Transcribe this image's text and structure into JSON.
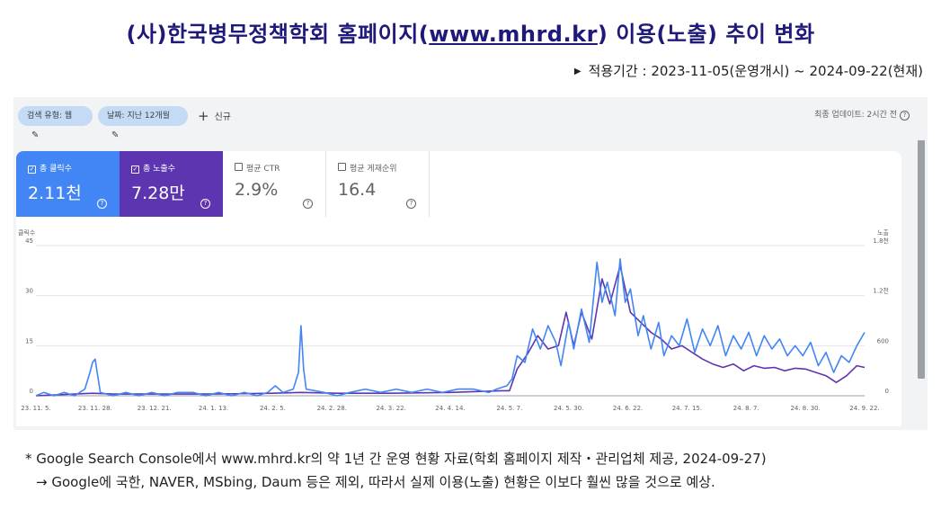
{
  "header": {
    "title_prefix": "(사)한국병무정책학회 홈페이지(",
    "title_url": "www.mhrd.kr",
    "title_suffix": ") 이용(노출) 추이 변화",
    "period": "적용기간 : 2023-11-05(운영개시) ~ 2024-09-22(현재)"
  },
  "toolbar": {
    "filter_type": "검색 유형: 웹",
    "filter_date": "날짜: 지난 12개월",
    "new_label": "신규",
    "updated": "최종 업데이트: 2시간 전"
  },
  "metrics": [
    {
      "label": "총 클릭수",
      "value": "2.11천",
      "checked": true,
      "color": "#4285f4"
    },
    {
      "label": "총 노출수",
      "value": "7.28만",
      "checked": true,
      "color": "#5e35b1"
    },
    {
      "label": "평균 CTR",
      "value": "2.9%",
      "checked": false
    },
    {
      "label": "평균 게재순위",
      "value": "16.4",
      "checked": false
    }
  ],
  "notes": {
    "line1": "* Google Search Console에서 www.mhrd.kr의 약 1년 간 운영 현황 자료(학회 홈페이지 제작・관리업체 제공, 2024-09-27)",
    "line2": "→ Google에 국한, NAVER, MSbing, Daum 등은 제외, 따라서 실제 이용(노출) 현황은 이보다 훨씬 많을 것으로 예상."
  },
  "chart_data": {
    "type": "line",
    "ylabel_left": "클릭수",
    "ylabel_right": "노출",
    "yticks_left": [
      "0",
      "15",
      "30",
      "45"
    ],
    "yticks_right": [
      "0",
      "600",
      "1.2천",
      "1.8천"
    ],
    "ylim_left": [
      0,
      45
    ],
    "ylim_right": [
      0,
      1800
    ],
    "x_range": [
      "2023-11-05",
      "2024-09-22"
    ],
    "x_ticks": [
      {
        "date": "2023-11-05",
        "label": "23. 11. 5."
      },
      {
        "date": "2023-11-28",
        "label": "23. 11. 28."
      },
      {
        "date": "2023-12-21",
        "label": "23. 12. 21."
      },
      {
        "date": "2024-01-13",
        "label": "24. 1. 13."
      },
      {
        "date": "2024-02-05",
        "label": "24. 2. 5."
      },
      {
        "date": "2024-02-28",
        "label": "24. 2. 28."
      },
      {
        "date": "2024-03-22",
        "label": "24. 3. 22."
      },
      {
        "date": "2024-04-14",
        "label": "24. 4. 14."
      },
      {
        "date": "2024-05-07",
        "label": "24. 5. 7."
      },
      {
        "date": "2024-05-30",
        "label": "24. 5. 30."
      },
      {
        "date": "2024-06-22",
        "label": "24. 6. 22."
      },
      {
        "date": "2024-07-15",
        "label": "24. 7. 15."
      },
      {
        "date": "2024-08-07",
        "label": "24. 8. 7."
      },
      {
        "date": "2024-08-30",
        "label": "24. 8. 30."
      },
      {
        "date": "2024-09-22",
        "label": "24. 9. 22."
      }
    ],
    "grid": true,
    "series": [
      {
        "name": "총 클릭수",
        "axis": "left",
        "color": "#4285f4",
        "points": [
          [
            "2023-11-05",
            0
          ],
          [
            "2023-11-08",
            1
          ],
          [
            "2023-11-12",
            0
          ],
          [
            "2023-11-16",
            1
          ],
          [
            "2023-11-20",
            0
          ],
          [
            "2023-11-24",
            2
          ],
          [
            "2023-11-26",
            7
          ],
          [
            "2023-11-27",
            10
          ],
          [
            "2023-11-28",
            11
          ],
          [
            "2023-11-29",
            6
          ],
          [
            "2023-11-30",
            1
          ],
          [
            "2023-12-05",
            0
          ],
          [
            "2023-12-10",
            1
          ],
          [
            "2023-12-15",
            0
          ],
          [
            "2023-12-20",
            1
          ],
          [
            "2023-12-25",
            0
          ],
          [
            "2023-12-30",
            1
          ],
          [
            "2024-01-05",
            1
          ],
          [
            "2024-01-10",
            0
          ],
          [
            "2024-01-15",
            1
          ],
          [
            "2024-01-20",
            0
          ],
          [
            "2024-01-25",
            1
          ],
          [
            "2024-01-30",
            0
          ],
          [
            "2024-02-03",
            1
          ],
          [
            "2024-02-06",
            3
          ],
          [
            "2024-02-09",
            1
          ],
          [
            "2024-02-13",
            2
          ],
          [
            "2024-02-15",
            7
          ],
          [
            "2024-02-16",
            21
          ],
          [
            "2024-02-17",
            8
          ],
          [
            "2024-02-18",
            2
          ],
          [
            "2024-02-25",
            1
          ],
          [
            "2024-03-01",
            0
          ],
          [
            "2024-03-06",
            1
          ],
          [
            "2024-03-12",
            2
          ],
          [
            "2024-03-18",
            1
          ],
          [
            "2024-03-24",
            2
          ],
          [
            "2024-03-30",
            1
          ],
          [
            "2024-04-05",
            2
          ],
          [
            "2024-04-11",
            1
          ],
          [
            "2024-04-17",
            2
          ],
          [
            "2024-04-23",
            2
          ],
          [
            "2024-04-29",
            1
          ],
          [
            "2024-05-02",
            2
          ],
          [
            "2024-05-06",
            3
          ],
          [
            "2024-05-08",
            5
          ],
          [
            "2024-05-10",
            12
          ],
          [
            "2024-05-13",
            10
          ],
          [
            "2024-05-16",
            20
          ],
          [
            "2024-05-19",
            14
          ],
          [
            "2024-05-22",
            21
          ],
          [
            "2024-05-25",
            16
          ],
          [
            "2024-05-27",
            9
          ],
          [
            "2024-05-30",
            22
          ],
          [
            "2024-06-01",
            14
          ],
          [
            "2024-06-04",
            26
          ],
          [
            "2024-06-07",
            16
          ],
          [
            "2024-06-10",
            40
          ],
          [
            "2024-06-12",
            28
          ],
          [
            "2024-06-14",
            34
          ],
          [
            "2024-06-17",
            24
          ],
          [
            "2024-06-19",
            41
          ],
          [
            "2024-06-21",
            28
          ],
          [
            "2024-06-23",
            32
          ],
          [
            "2024-06-26",
            18
          ],
          [
            "2024-06-28",
            24
          ],
          [
            "2024-07-01",
            14
          ],
          [
            "2024-07-04",
            22
          ],
          [
            "2024-07-06",
            12
          ],
          [
            "2024-07-09",
            18
          ],
          [
            "2024-07-12",
            15
          ],
          [
            "2024-07-15",
            23
          ],
          [
            "2024-07-18",
            13
          ],
          [
            "2024-07-21",
            20
          ],
          [
            "2024-07-24",
            15
          ],
          [
            "2024-07-27",
            21
          ],
          [
            "2024-07-30",
            12
          ],
          [
            "2024-08-02",
            18
          ],
          [
            "2024-08-05",
            14
          ],
          [
            "2024-08-08",
            19
          ],
          [
            "2024-08-11",
            12
          ],
          [
            "2024-08-14",
            18
          ],
          [
            "2024-08-17",
            14
          ],
          [
            "2024-08-20",
            17
          ],
          [
            "2024-08-23",
            12
          ],
          [
            "2024-08-26",
            15
          ],
          [
            "2024-08-29",
            12
          ],
          [
            "2024-09-01",
            16
          ],
          [
            "2024-09-04",
            9
          ],
          [
            "2024-09-07",
            13
          ],
          [
            "2024-09-10",
            7
          ],
          [
            "2024-09-13",
            12
          ],
          [
            "2024-09-16",
            10
          ],
          [
            "2024-09-19",
            15
          ],
          [
            "2024-09-22",
            19
          ]
        ]
      },
      {
        "name": "총 노출수",
        "axis": "right",
        "color": "#5e35b1",
        "points": [
          [
            "2023-11-05",
            0
          ],
          [
            "2023-11-20",
            20
          ],
          [
            "2023-11-27",
            30
          ],
          [
            "2023-12-05",
            20
          ],
          [
            "2023-12-25",
            20
          ],
          [
            "2024-01-13",
            20
          ],
          [
            "2024-02-05",
            30
          ],
          [
            "2024-02-16",
            40
          ],
          [
            "2024-03-01",
            30
          ],
          [
            "2024-03-22",
            30
          ],
          [
            "2024-04-14",
            40
          ],
          [
            "2024-05-04",
            60
          ],
          [
            "2024-05-07",
            60
          ],
          [
            "2024-05-10",
            320
          ],
          [
            "2024-05-14",
            500
          ],
          [
            "2024-05-18",
            720
          ],
          [
            "2024-05-22",
            560
          ],
          [
            "2024-05-26",
            600
          ],
          [
            "2024-05-29",
            1000
          ],
          [
            "2024-06-01",
            600
          ],
          [
            "2024-06-04",
            1000
          ],
          [
            "2024-06-08",
            680
          ],
          [
            "2024-06-12",
            1400
          ],
          [
            "2024-06-15",
            1100
          ],
          [
            "2024-06-19",
            1560
          ],
          [
            "2024-06-23",
            1000
          ],
          [
            "2024-06-27",
            880
          ],
          [
            "2024-07-01",
            760
          ],
          [
            "2024-07-05",
            680
          ],
          [
            "2024-07-09",
            560
          ],
          [
            "2024-07-13",
            600
          ],
          [
            "2024-07-17",
            520
          ],
          [
            "2024-07-21",
            440
          ],
          [
            "2024-07-25",
            380
          ],
          [
            "2024-07-29",
            340
          ],
          [
            "2024-08-02",
            380
          ],
          [
            "2024-08-06",
            300
          ],
          [
            "2024-08-10",
            360
          ],
          [
            "2024-08-14",
            330
          ],
          [
            "2024-08-18",
            340
          ],
          [
            "2024-08-22",
            300
          ],
          [
            "2024-08-26",
            330
          ],
          [
            "2024-08-30",
            320
          ],
          [
            "2024-09-03",
            280
          ],
          [
            "2024-09-07",
            240
          ],
          [
            "2024-09-11",
            160
          ],
          [
            "2024-09-15",
            240
          ],
          [
            "2024-09-19",
            360
          ],
          [
            "2024-09-22",
            340
          ]
        ]
      }
    ]
  }
}
